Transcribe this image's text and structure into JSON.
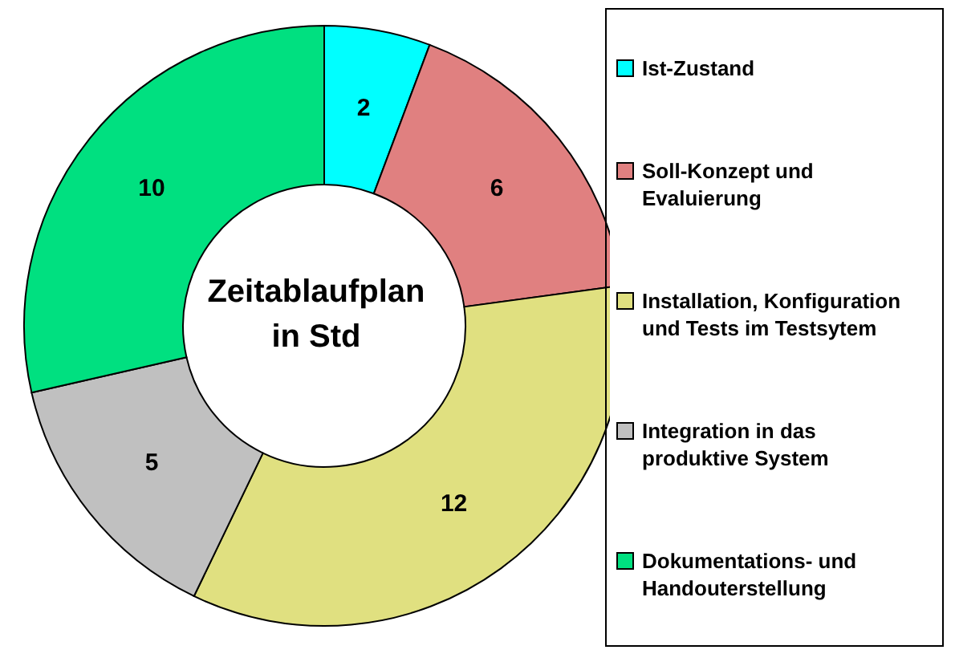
{
  "chart_data": {
    "type": "donut",
    "title": "Zeitablaufplan in Std",
    "categories": [
      "Ist-Zustand",
      "Soll-Konzept und Evaluierung",
      "Installation, Konfiguration und Tests im  Testsytem",
      "Integration in das produktive System",
      "Dokumentations- und Handouterstellung"
    ],
    "values": [
      2,
      6,
      12,
      5,
      10
    ],
    "colors": [
      "#00ffff",
      "#e08080",
      "#e0e080",
      "#c0c0c0",
      "#00e080"
    ],
    "data_labels": true,
    "legend": "right"
  }
}
